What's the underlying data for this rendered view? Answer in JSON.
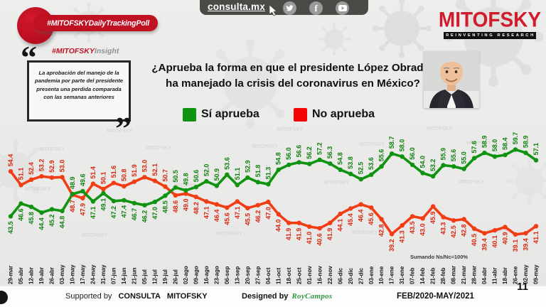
{
  "banner": {
    "hashtag": "#MITOFSKYDailyTrackingPoll"
  },
  "topbar": {
    "site": "consulta.mx",
    "icons": [
      "twitter-icon",
      "facebook-icon",
      "youtube-icon"
    ]
  },
  "logo": {
    "brand": "MITOFSKY",
    "tagline": "REINVENTING RESEARCH"
  },
  "insight": {
    "heading_red": "#MITOFSKY",
    "heading_gray": "Insight",
    "quote_open": "“",
    "quote_close": "”",
    "text": "La aprobación del manejo de la pandemia por parte del presidente  presenta una perdida comparada con las semanas anteriores"
  },
  "question": {
    "line1": "¿Aprueba la forma en que el presidente López Obrador",
    "line2": "ha manejado la crisis del coronavirus en México?"
  },
  "legend": [
    {
      "label": "Sí aprueba",
      "color": "#109310"
    },
    {
      "label": "No aprueba",
      "color": "#f40505"
    }
  ],
  "watermark": "MITOFSKY",
  "footer": {
    "supported_prefix": "Supported by",
    "brand1": "CONSULTA",
    "brand2": "MITOFSKY",
    "designed_prefix": "Designed by",
    "designer": "RoyCampos",
    "period": "FEB/2020-MAY/2021",
    "page": "11"
  },
  "chart_data": {
    "type": "line",
    "title": "¿Aprueba la forma en que el presidente López Obrador ha manejado la crisis del coronavirus en México?",
    "note": "Sumando Ns/Nc=100%",
    "grid": false,
    "legend_position": "top",
    "ylim": [
      37,
      62
    ],
    "categories": [
      "29-mar",
      "05-abr",
      "12-abr",
      "19-abr",
      "26-abr",
      "03-may",
      "10-may",
      "17-may",
      "24-may",
      "31-may",
      "07-jun",
      "14-jun",
      "21-jun",
      "05-jul",
      "12-jul",
      "19-jul",
      "26-jul",
      "02-ago",
      "09-ago",
      "16-ago",
      "23-ago",
      "06-sep",
      "13-sep",
      "20-sep",
      "27-sep",
      "04-oct",
      "11-oct",
      "18-oct",
      "25-oct",
      "01-nov",
      "16-nov",
      "22-nov",
      "06-dic",
      "20-dic",
      "27-dic",
      "03-ene",
      "10-ene",
      "17-ene",
      "31-ene",
      "07-feb",
      "14-feb",
      "21-feb",
      "28-feb",
      "08-mar",
      "21-mar",
      "28-mar",
      "04-abr",
      "11-abr",
      "18-abr",
      "26-ene",
      "02-may",
      "09-may"
    ],
    "series": [
      {
        "name": "Sí aprueba",
        "color": "#109310",
        "label_color": "#0d7f0d",
        "values": [
          43.5,
          46.6,
          45.8,
          44.4,
          45.2,
          44.8,
          48.9,
          49.6,
          47.1,
          49.1,
          47.2,
          47.4,
          46.7,
          46.2,
          47.0,
          48.5,
          50.5,
          49.8,
          50.6,
          52.0,
          50.9,
          53.6,
          51.1,
          52.9,
          51.8,
          51.3,
          54.8,
          56.0,
          56.6,
          56.2,
          57.2,
          56.3,
          54.8,
          53.8,
          52.5,
          53.6,
          55.6,
          58.7,
          58.0,
          56.0,
          54.0,
          53.2,
          55.9,
          55.6,
          55.0,
          57.6,
          58.9,
          58.0,
          58.4,
          59.7,
          58.9,
          57.1
        ]
      },
      {
        "name": "No aprueba",
        "color": "#f23c14",
        "label_color": "#d8250f",
        "values": [
          54.4,
          51.1,
          52.4,
          53.2,
          52.9,
          53.0,
          48.7,
          47.9,
          51.4,
          50.1,
          51.6,
          50.8,
          51.9,
          53.0,
          52.1,
          50.7,
          48.6,
          49.0,
          48.2,
          47.1,
          46.4,
          45.6,
          47.1,
          45.5,
          46.2,
          47.0,
          44.0,
          41.9,
          41.9,
          41.0,
          40.6,
          41.9,
          44.1,
          45.4,
          46.4,
          45.6,
          42.8,
          39.2,
          41.3,
          43.5,
          43.0,
          45.9,
          43.3,
          42.5,
          42.8,
          40.5,
          39.4,
          40.1,
          40.9,
          39.1,
          39.4,
          41.1
        ]
      }
    ]
  }
}
